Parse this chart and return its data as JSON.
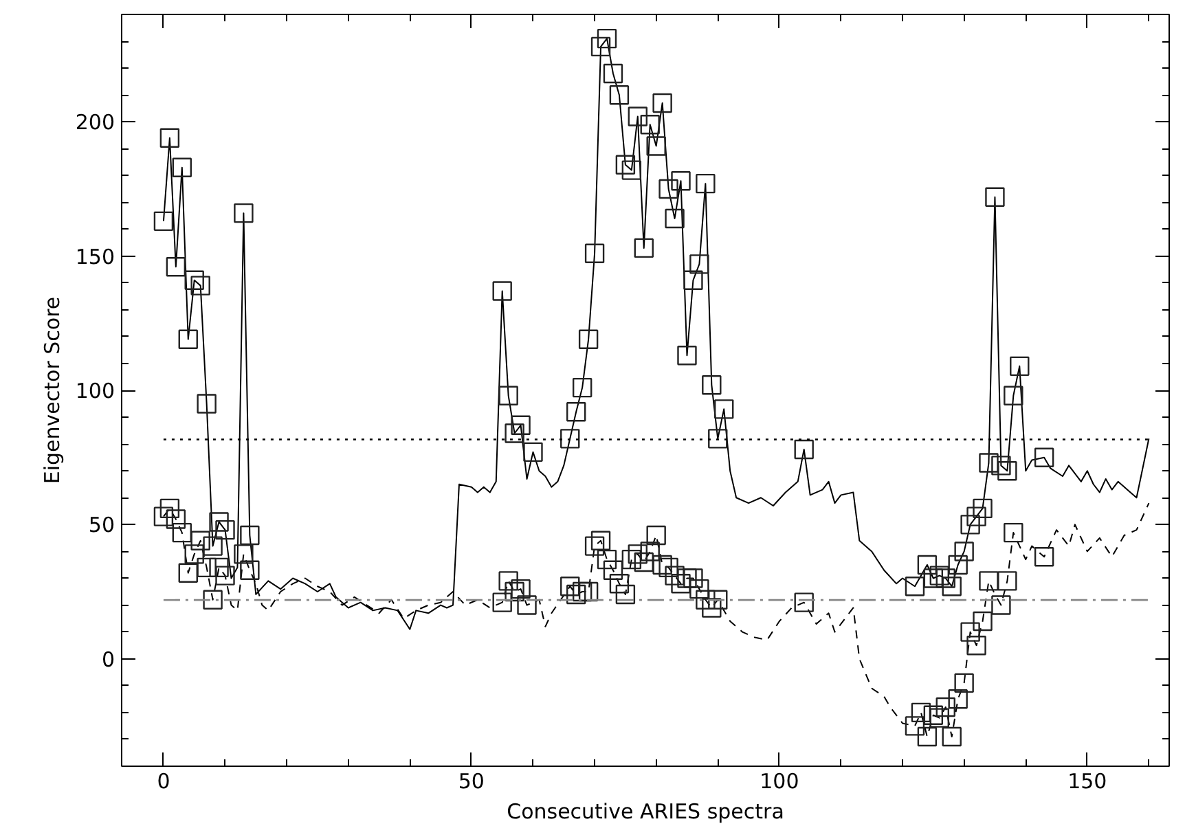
{
  "chart_data": {
    "type": "line",
    "xlabel": "Consecutive ARIES spectra",
    "ylabel": "Eigenvector Score",
    "xlim": [
      -6.8,
      163.3
    ],
    "ylim": [
      -40,
      240
    ],
    "xticks": [
      0,
      50,
      100,
      150
    ],
    "yticks": [
      0,
      50,
      100,
      150,
      200
    ],
    "grid": false,
    "series": [
      {
        "line_style": "solid",
        "color": "#000000",
        "x": [
          0,
          1,
          2,
          3,
          4,
          5,
          6,
          7,
          8,
          9,
          10,
          11,
          12,
          13,
          14,
          15,
          17,
          19,
          21,
          23,
          25,
          27,
          28,
          30,
          32,
          34,
          36,
          38,
          40,
          41,
          43,
          45,
          46,
          47,
          48,
          50,
          51,
          52,
          53,
          54,
          55,
          56,
          57,
          58,
          59,
          60,
          61,
          62,
          63,
          64,
          65,
          66,
          67,
          68,
          69,
          70,
          71,
          72,
          73,
          74,
          75,
          76,
          77,
          78,
          79,
          80,
          81,
          82,
          83,
          84,
          85,
          86,
          87,
          88,
          89,
          90,
          91,
          92,
          93,
          95,
          97,
          99,
          101,
          103,
          104,
          105,
          107,
          108,
          109,
          110,
          112,
          113,
          115,
          117,
          119,
          120,
          122,
          124,
          125,
          126,
          127,
          128,
          129,
          130,
          131,
          132,
          133,
          134,
          135,
          136,
          137,
          138,
          139,
          140,
          141,
          143,
          144,
          146,
          147,
          149,
          150,
          151,
          152,
          153,
          154,
          155,
          157,
          158,
          160
        ],
        "values": [
          163,
          194,
          146,
          183,
          119,
          141,
          139,
          95,
          42,
          51,
          48,
          30,
          34,
          166,
          46,
          24,
          29,
          26,
          30,
          28,
          25,
          28,
          23,
          19,
          21,
          18,
          19,
          18,
          11,
          18,
          17,
          20,
          19,
          20,
          65,
          64,
          62,
          64,
          62,
          66,
          137,
          98,
          84,
          87,
          67,
          77,
          70,
          68,
          64,
          66,
          72,
          82,
          92,
          101,
          119,
          151,
          228,
          231,
          218,
          210,
          184,
          182,
          202,
          153,
          199,
          191,
          207,
          175,
          164,
          178,
          113,
          141,
          147,
          177,
          102,
          82,
          93,
          70,
          60,
          58,
          60,
          57,
          62,
          66,
          78,
          61,
          63,
          66,
          58,
          61,
          62,
          44,
          40,
          33,
          28,
          30,
          27,
          35,
          30,
          31,
          30,
          27,
          35,
          40,
          50,
          53,
          56,
          73,
          172,
          72,
          70,
          98,
          109,
          70,
          74,
          75,
          71,
          68,
          72,
          66,
          70,
          65,
          62,
          67,
          63,
          66,
          62,
          60,
          82
        ]
      },
      {
        "line_style": "dashed",
        "color": "#000000",
        "x": [
          0,
          1,
          2,
          3,
          4,
          5,
          6,
          7,
          8,
          9,
          10,
          11,
          12,
          13,
          14,
          15,
          16,
          17,
          19,
          21,
          23,
          25,
          27,
          29,
          31,
          33,
          35,
          37,
          39,
          41,
          43,
          45,
          47,
          49,
          51,
          53,
          55,
          56,
          57,
          58,
          59,
          61,
          62,
          63,
          66,
          67,
          68,
          69,
          70,
          71,
          72,
          73,
          74,
          75,
          76,
          77,
          78,
          79,
          80,
          81,
          82,
          83,
          84,
          85,
          86,
          87,
          88,
          89,
          90,
          92,
          94,
          96,
          98,
          100,
          102,
          104,
          106,
          108,
          109,
          111,
          112,
          113,
          115,
          117,
          118,
          120,
          122,
          123,
          124,
          125,
          126,
          127,
          128,
          129,
          130,
          131,
          132,
          133,
          134,
          135,
          136,
          137,
          138,
          140,
          141,
          143,
          145,
          147,
          148,
          150,
          152,
          154,
          156,
          158,
          160
        ],
        "values": [
          53,
          56,
          52,
          47,
          32,
          39,
          44,
          34,
          22,
          34,
          31,
          20,
          18,
          39,
          33,
          28,
          20,
          18,
          25,
          28,
          30,
          27,
          25,
          20,
          23,
          20,
          17,
          22,
          15,
          18,
          20,
          21,
          25,
          20,
          22,
          19,
          21,
          29,
          25,
          26,
          20,
          22,
          12,
          17,
          27,
          24,
          25,
          25,
          42,
          44,
          37,
          33,
          28,
          24,
          37,
          39,
          36,
          40,
          46,
          35,
          34,
          31,
          28,
          30,
          30,
          26,
          22,
          19,
          22,
          14,
          10,
          8,
          7,
          14,
          19,
          21,
          13,
          17,
          10,
          16,
          19,
          0,
          -11,
          -14,
          -18,
          -24,
          -25,
          -20,
          -29,
          -21,
          -22,
          -18,
          -29,
          -15,
          -9,
          10,
          5,
          14,
          29,
          24,
          20,
          29,
          47,
          37,
          42,
          38,
          48,
          42,
          50,
          40,
          45,
          38,
          46,
          48,
          58
        ]
      },
      {
        "type": "scatter",
        "marker": "square",
        "color": "#222222",
        "x": [
          0,
          1,
          2,
          3,
          4,
          5,
          6,
          7,
          8,
          9,
          10,
          13,
          14,
          55,
          56,
          57,
          58,
          60,
          66,
          67,
          68,
          69,
          70,
          71,
          72,
          73,
          74,
          75,
          76,
          77,
          78,
          79,
          80,
          81,
          82,
          83,
          84,
          85,
          86,
          87,
          88,
          89,
          90,
          91,
          104,
          122,
          124,
          125,
          126,
          127,
          128,
          129,
          130,
          131,
          132,
          133,
          134,
          135,
          136,
          137,
          138,
          139,
          143
        ],
        "values": [
          163,
          194,
          146,
          183,
          119,
          141,
          139,
          95,
          42,
          51,
          48,
          166,
          46,
          137,
          98,
          84,
          87,
          77,
          82,
          92,
          101,
          119,
          151,
          228,
          231,
          218,
          210,
          184,
          182,
          202,
          153,
          199,
          191,
          207,
          175,
          164,
          178,
          113,
          141,
          147,
          177,
          102,
          82,
          93,
          78,
          27,
          35,
          30,
          31,
          30,
          27,
          35,
          40,
          50,
          53,
          56,
          73,
          172,
          72,
          70,
          98,
          109,
          75
        ]
      },
      {
        "type": "scatter",
        "marker": "square",
        "color": "#222222",
        "x": [
          0,
          1,
          2,
          3,
          4,
          5,
          6,
          7,
          8,
          9,
          10,
          13,
          14,
          55,
          56,
          57,
          58,
          59,
          66,
          67,
          68,
          69,
          70,
          71,
          72,
          73,
          74,
          75,
          76,
          77,
          78,
          79,
          80,
          81,
          82,
          83,
          84,
          85,
          86,
          87,
          88,
          89,
          90,
          104,
          122,
          123,
          124,
          125,
          126,
          127,
          128,
          129,
          130,
          131,
          132,
          133,
          134,
          136,
          137,
          138,
          143
        ],
        "values": [
          53,
          56,
          52,
          47,
          32,
          39,
          44,
          34,
          22,
          34,
          31,
          39,
          33,
          21,
          29,
          25,
          26,
          20,
          27,
          24,
          25,
          25,
          42,
          44,
          37,
          33,
          28,
          24,
          37,
          39,
          36,
          40,
          46,
          35,
          34,
          31,
          28,
          30,
          30,
          26,
          22,
          19,
          22,
          21,
          -25,
          -20,
          -29,
          -21,
          -22,
          -18,
          -29,
          -15,
          -9,
          10,
          5,
          14,
          29,
          20,
          29,
          47,
          38
        ]
      }
    ],
    "ref_lines": [
      {
        "axis": "y",
        "value": 81.7,
        "color": "#000000",
        "line_style": "dotted"
      },
      {
        "axis": "y",
        "value": 21.9,
        "color": "#888888",
        "line_style": "dashdot"
      }
    ]
  }
}
